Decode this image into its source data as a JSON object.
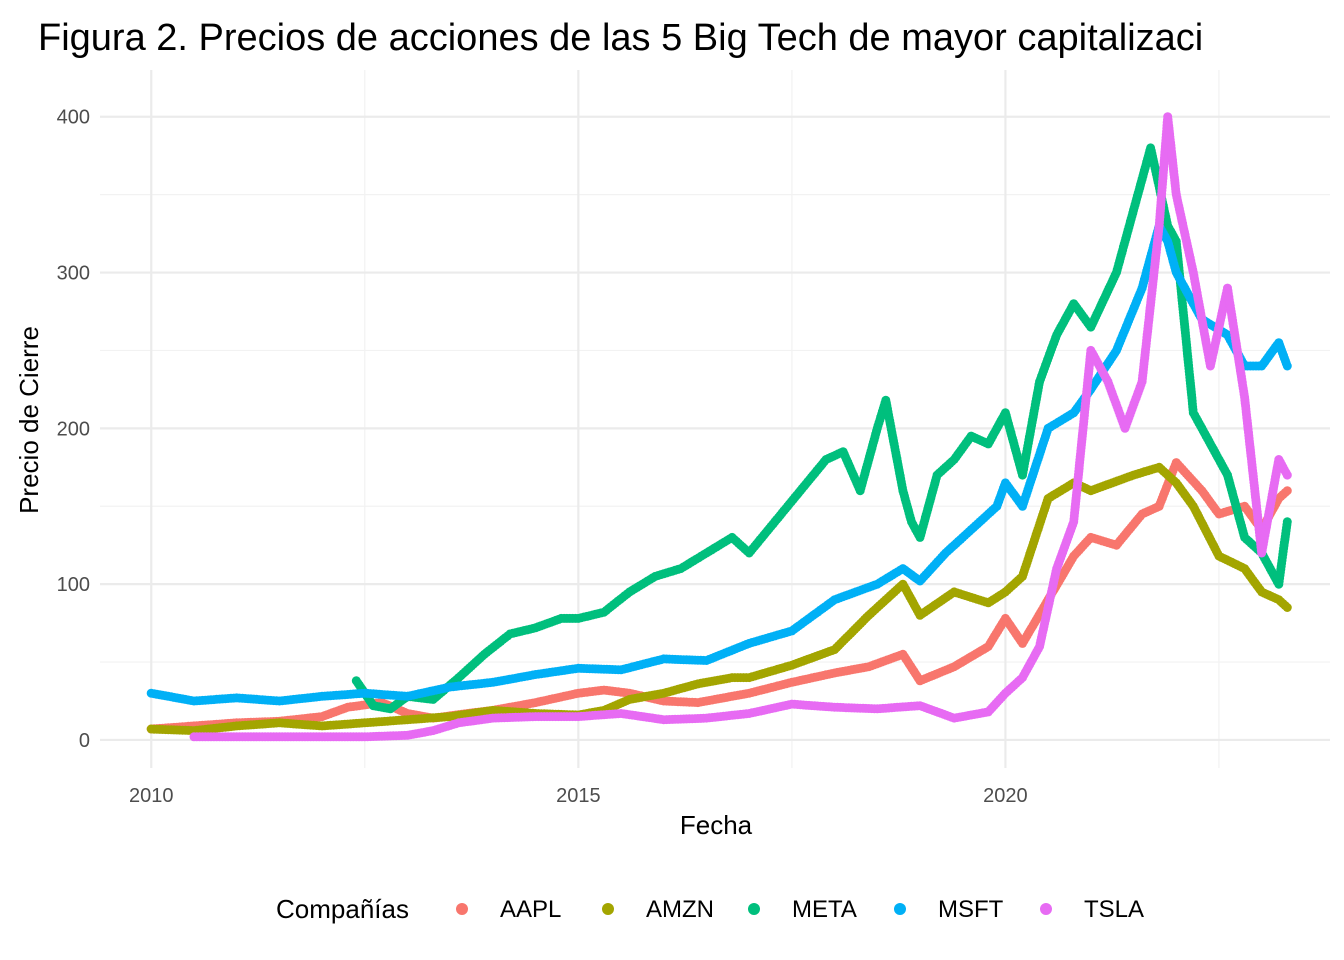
{
  "chart_data": {
    "type": "scatter",
    "title": "Figura 2. Precios de acciones de las 5 Big Tech de mayor capitalizaci",
    "xlabel": "Fecha",
    "ylabel": "Precio de Cierre",
    "legend_title": "Compañías",
    "legend_position": "bottom",
    "grid": true,
    "xlim": [
      2009.4,
      2023.8
    ],
    "ylim": [
      -18,
      430
    ],
    "x_ticks": [
      2010,
      2015,
      2020
    ],
    "x_tick_labels": [
      "2010",
      "2015",
      "2020"
    ],
    "y_ticks": [
      0,
      100,
      200,
      300,
      400
    ],
    "y_tick_labels": [
      "0",
      "100",
      "200",
      "300",
      "400"
    ],
    "series": [
      {
        "name": "AAPL",
        "color": "#F8766D",
        "points": [
          [
            2010.0,
            7
          ],
          [
            2010.5,
            9
          ],
          [
            2011.0,
            11
          ],
          [
            2011.5,
            12
          ],
          [
            2012.0,
            15
          ],
          [
            2012.3,
            21
          ],
          [
            2012.7,
            24
          ],
          [
            2013.0,
            17
          ],
          [
            2013.3,
            14
          ],
          [
            2013.7,
            17
          ],
          [
            2014.0,
            19
          ],
          [
            2014.5,
            24
          ],
          [
            2015.0,
            30
          ],
          [
            2015.3,
            32
          ],
          [
            2015.6,
            30
          ],
          [
            2016.0,
            25
          ],
          [
            2016.4,
            24
          ],
          [
            2016.8,
            28
          ],
          [
            2017.0,
            30
          ],
          [
            2017.5,
            37
          ],
          [
            2018.0,
            43
          ],
          [
            2018.4,
            47
          ],
          [
            2018.8,
            55
          ],
          [
            2019.0,
            38
          ],
          [
            2019.4,
            47
          ],
          [
            2019.8,
            60
          ],
          [
            2020.0,
            78
          ],
          [
            2020.2,
            62
          ],
          [
            2020.5,
            90
          ],
          [
            2020.8,
            118
          ],
          [
            2021.0,
            130
          ],
          [
            2021.3,
            125
          ],
          [
            2021.6,
            145
          ],
          [
            2021.8,
            150
          ],
          [
            2022.0,
            178
          ],
          [
            2022.3,
            160
          ],
          [
            2022.5,
            145
          ],
          [
            2022.8,
            150
          ],
          [
            2023.0,
            135
          ],
          [
            2023.2,
            155
          ],
          [
            2023.3,
            160
          ]
        ]
      },
      {
        "name": "AMZN",
        "color": "#A3A500",
        "points": [
          [
            2010.0,
            7
          ],
          [
            2010.5,
            6
          ],
          [
            2011.0,
            9
          ],
          [
            2011.5,
            11
          ],
          [
            2012.0,
            9
          ],
          [
            2012.5,
            11
          ],
          [
            2013.0,
            13
          ],
          [
            2013.5,
            15
          ],
          [
            2014.0,
            19
          ],
          [
            2014.5,
            17
          ],
          [
            2015.0,
            16
          ],
          [
            2015.3,
            19
          ],
          [
            2015.6,
            26
          ],
          [
            2016.0,
            30
          ],
          [
            2016.4,
            36
          ],
          [
            2016.8,
            40
          ],
          [
            2017.0,
            40
          ],
          [
            2017.5,
            48
          ],
          [
            2018.0,
            58
          ],
          [
            2018.4,
            80
          ],
          [
            2018.8,
            100
          ],
          [
            2019.0,
            80
          ],
          [
            2019.4,
            95
          ],
          [
            2019.8,
            88
          ],
          [
            2020.0,
            95
          ],
          [
            2020.2,
            105
          ],
          [
            2020.5,
            155
          ],
          [
            2020.8,
            165
          ],
          [
            2021.0,
            160
          ],
          [
            2021.5,
            170
          ],
          [
            2021.8,
            175
          ],
          [
            2022.0,
            165
          ],
          [
            2022.2,
            150
          ],
          [
            2022.5,
            118
          ],
          [
            2022.8,
            110
          ],
          [
            2023.0,
            95
          ],
          [
            2023.2,
            90
          ],
          [
            2023.3,
            85
          ]
        ]
      },
      {
        "name": "META",
        "color": "#00BF7D",
        "points": [
          [
            2012.4,
            38
          ],
          [
            2012.6,
            22
          ],
          [
            2012.8,
            20
          ],
          [
            2013.0,
            28
          ],
          [
            2013.3,
            26
          ],
          [
            2013.6,
            40
          ],
          [
            2013.9,
            55
          ],
          [
            2014.2,
            68
          ],
          [
            2014.5,
            72
          ],
          [
            2014.8,
            78
          ],
          [
            2015.0,
            78
          ],
          [
            2015.3,
            82
          ],
          [
            2015.6,
            95
          ],
          [
            2015.9,
            105
          ],
          [
            2016.2,
            110
          ],
          [
            2016.5,
            120
          ],
          [
            2016.8,
            130
          ],
          [
            2017.0,
            120
          ],
          [
            2017.3,
            140
          ],
          [
            2017.6,
            160
          ],
          [
            2017.9,
            180
          ],
          [
            2018.1,
            185
          ],
          [
            2018.3,
            160
          ],
          [
            2018.5,
            200
          ],
          [
            2018.6,
            218
          ],
          [
            2018.8,
            160
          ],
          [
            2018.9,
            140
          ],
          [
            2019.0,
            130
          ],
          [
            2019.2,
            170
          ],
          [
            2019.4,
            180
          ],
          [
            2019.6,
            195
          ],
          [
            2019.8,
            190
          ],
          [
            2020.0,
            210
          ],
          [
            2020.2,
            170
          ],
          [
            2020.4,
            230
          ],
          [
            2020.6,
            260
          ],
          [
            2020.8,
            280
          ],
          [
            2021.0,
            265
          ],
          [
            2021.3,
            300
          ],
          [
            2021.5,
            340
          ],
          [
            2021.7,
            380
          ],
          [
            2021.9,
            330
          ],
          [
            2022.0,
            320
          ],
          [
            2022.2,
            210
          ],
          [
            2022.4,
            190
          ],
          [
            2022.6,
            170
          ],
          [
            2022.8,
            130
          ],
          [
            2023.0,
            120
          ],
          [
            2023.2,
            100
          ],
          [
            2023.3,
            140
          ]
        ]
      },
      {
        "name": "MSFT",
        "color": "#00B0F6",
        "points": [
          [
            2010.0,
            30
          ],
          [
            2010.5,
            25
          ],
          [
            2011.0,
            27
          ],
          [
            2011.5,
            25
          ],
          [
            2012.0,
            28
          ],
          [
            2012.5,
            30
          ],
          [
            2013.0,
            28
          ],
          [
            2013.5,
            34
          ],
          [
            2014.0,
            37
          ],
          [
            2014.5,
            42
          ],
          [
            2015.0,
            46
          ],
          [
            2015.5,
            45
          ],
          [
            2016.0,
            52
          ],
          [
            2016.5,
            51
          ],
          [
            2017.0,
            62
          ],
          [
            2017.5,
            70
          ],
          [
            2018.0,
            90
          ],
          [
            2018.5,
            100
          ],
          [
            2018.8,
            110
          ],
          [
            2019.0,
            102
          ],
          [
            2019.3,
            120
          ],
          [
            2019.6,
            135
          ],
          [
            2019.9,
            150
          ],
          [
            2020.0,
            165
          ],
          [
            2020.2,
            150
          ],
          [
            2020.5,
            200
          ],
          [
            2020.8,
            210
          ],
          [
            2021.0,
            225
          ],
          [
            2021.3,
            250
          ],
          [
            2021.6,
            290
          ],
          [
            2021.8,
            330
          ],
          [
            2021.9,
            320
          ],
          [
            2022.0,
            300
          ],
          [
            2022.3,
            270
          ],
          [
            2022.6,
            260
          ],
          [
            2022.8,
            240
          ],
          [
            2023.0,
            240
          ],
          [
            2023.2,
            255
          ],
          [
            2023.3,
            240
          ]
        ]
      },
      {
        "name": "TSLA",
        "color": "#E76BF3",
        "points": [
          [
            2010.5,
            2
          ],
          [
            2011.0,
            2
          ],
          [
            2011.5,
            2
          ],
          [
            2012.0,
            2
          ],
          [
            2012.5,
            2
          ],
          [
            2013.0,
            3
          ],
          [
            2013.3,
            6
          ],
          [
            2013.6,
            11
          ],
          [
            2014.0,
            14
          ],
          [
            2014.5,
            15
          ],
          [
            2015.0,
            15
          ],
          [
            2015.5,
            17
          ],
          [
            2016.0,
            13
          ],
          [
            2016.5,
            14
          ],
          [
            2017.0,
            17
          ],
          [
            2017.5,
            23
          ],
          [
            2018.0,
            21
          ],
          [
            2018.5,
            20
          ],
          [
            2019.0,
            22
          ],
          [
            2019.4,
            14
          ],
          [
            2019.8,
            18
          ],
          [
            2020.0,
            30
          ],
          [
            2020.2,
            40
          ],
          [
            2020.4,
            60
          ],
          [
            2020.6,
            110
          ],
          [
            2020.8,
            140
          ],
          [
            2021.0,
            250
          ],
          [
            2021.2,
            230
          ],
          [
            2021.4,
            200
          ],
          [
            2021.6,
            230
          ],
          [
            2021.8,
            330
          ],
          [
            2021.9,
            400
          ],
          [
            2022.0,
            350
          ],
          [
            2022.2,
            300
          ],
          [
            2022.4,
            240
          ],
          [
            2022.6,
            290
          ],
          [
            2022.8,
            220
          ],
          [
            2023.0,
            120
          ],
          [
            2023.2,
            180
          ],
          [
            2023.3,
            170
          ]
        ]
      }
    ]
  }
}
